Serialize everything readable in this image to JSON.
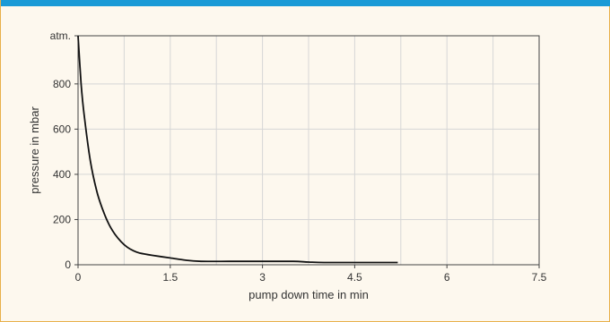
{
  "colors": {
    "accent_bar": "#1a9ad6",
    "border": "#e8b04a",
    "background": "#fdf8ee",
    "curve": "#111111",
    "grid": "#d6d6d6"
  },
  "chart_data": {
    "type": "line",
    "title": "",
    "xlabel": "pump down time in min",
    "ylabel": "pressure in mbar",
    "xlim": [
      0,
      7.5
    ],
    "ylim": [
      0,
      1013
    ],
    "x_ticks": [
      {
        "value": 0,
        "label": "0"
      },
      {
        "value": 1.5,
        "label": "1.5"
      },
      {
        "value": 3,
        "label": "3"
      },
      {
        "value": 4.5,
        "label": "4.5"
      },
      {
        "value": 6,
        "label": "6"
      },
      {
        "value": 7.5,
        "label": "7.5"
      }
    ],
    "y_ticks": [
      {
        "value": 0,
        "label": "0"
      },
      {
        "value": 200,
        "label": "200"
      },
      {
        "value": 400,
        "label": "400"
      },
      {
        "value": 600,
        "label": "600"
      },
      {
        "value": 800,
        "label": "800"
      },
      {
        "value": 1013,
        "label": "atm."
      }
    ],
    "x_minor_step": 0.75,
    "grid": true,
    "legend": "none",
    "series": [
      {
        "x": [
          0,
          0.05,
          0.1,
          0.2,
          0.3,
          0.4,
          0.5,
          0.6,
          0.7,
          0.8,
          0.9,
          1.0,
          1.2,
          1.5,
          1.75,
          2.0,
          2.5,
          3.0,
          3.5,
          3.75,
          4.0,
          4.5,
          5.0,
          5.2
        ],
        "y": [
          1013,
          800,
          660,
          460,
          330,
          245,
          180,
          135,
          102,
          78,
          62,
          52,
          42,
          30,
          20,
          15,
          15,
          15,
          15,
          12,
          10,
          10,
          10,
          10
        ]
      }
    ]
  }
}
